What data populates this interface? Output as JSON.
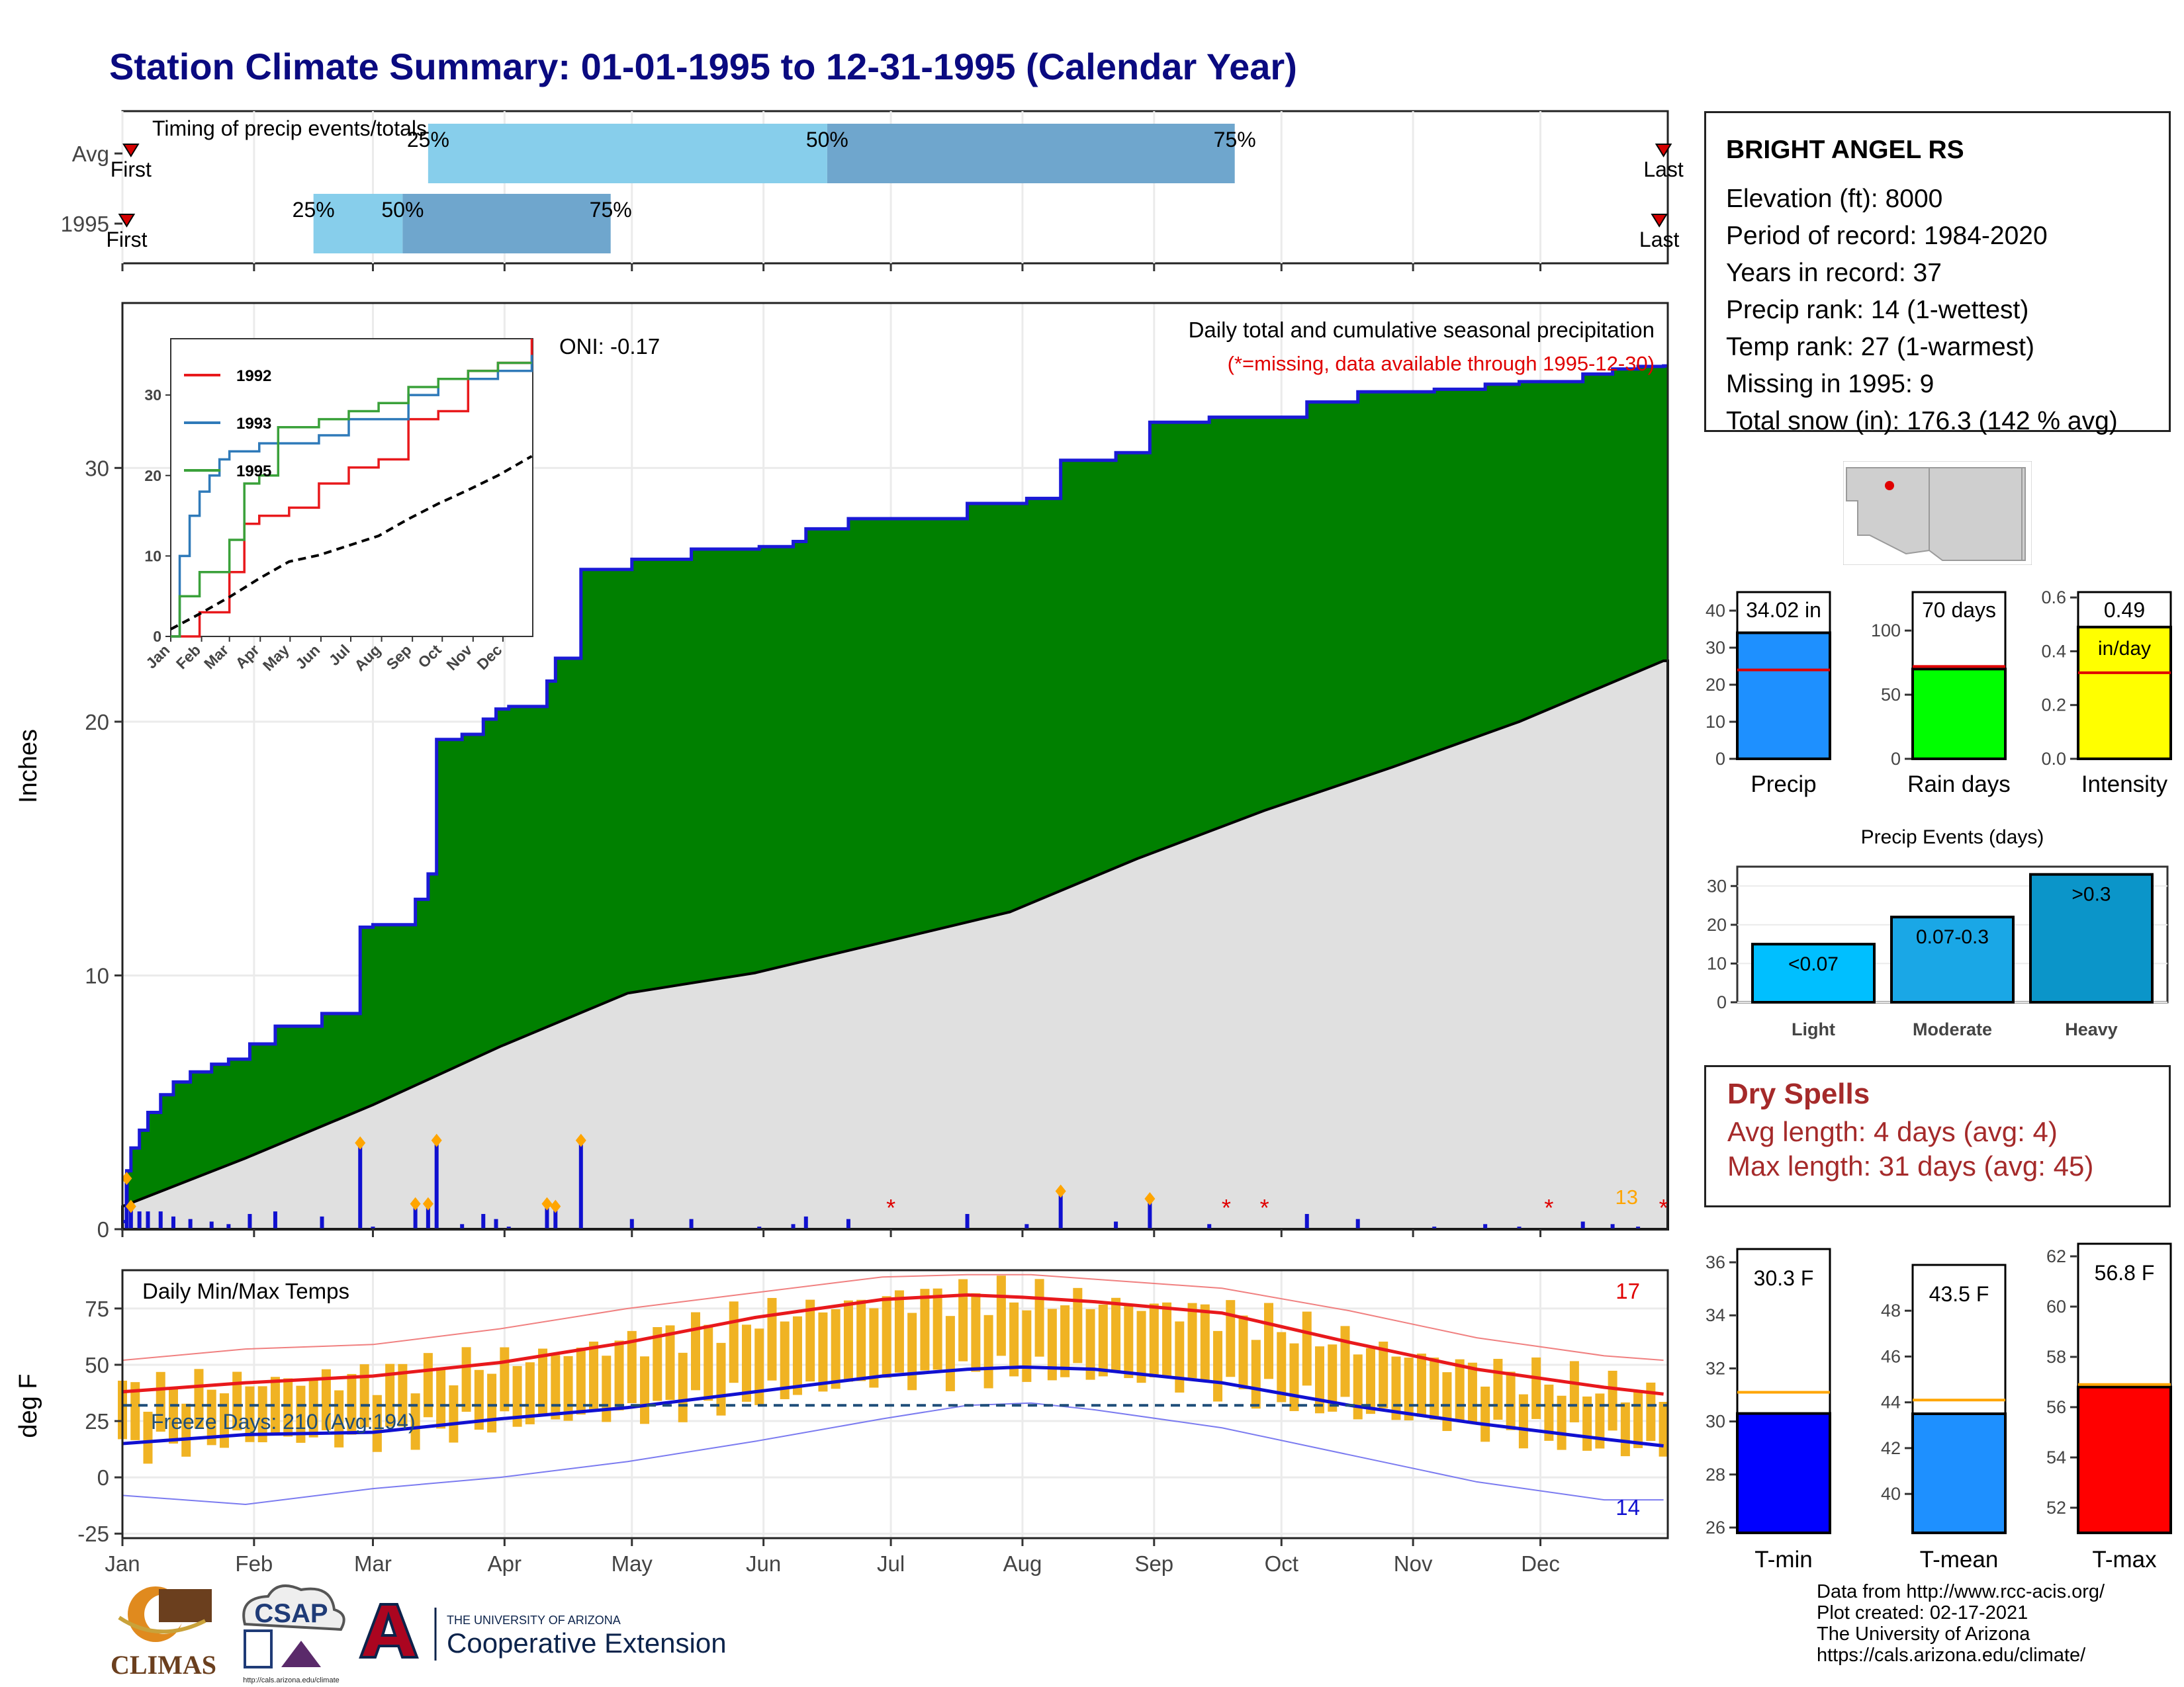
{
  "title": "Station Climate Summary: 01-01-1995 to 12-31-1995 (Calendar Year)",
  "months": [
    "Jan",
    "Feb",
    "Mar",
    "Apr",
    "May",
    "Jun",
    "Jul",
    "Aug",
    "Sep",
    "Oct",
    "Nov",
    "Dec"
  ],
  "timing": {
    "label": "Timing of precip events/totals",
    "rows": [
      "Avg",
      "1995"
    ],
    "first_label": "First",
    "last_label": "Last",
    "pct_labels": [
      "25%",
      "50%",
      "75%"
    ],
    "avg": {
      "first_doy": 3,
      "p25_doy": 73,
      "p50_doy": 167,
      "p75_doy": 263,
      "last_doy": 364
    },
    "y1995": {
      "first_doy": 2,
      "p25_doy": 46,
      "p50_doy": 67,
      "p75_doy": 116,
      "last_doy": 363
    }
  },
  "precip_panel": {
    "title": "Daily total and cumulative seasonal precipitation",
    "subtitle": "(*=missing, data available through 1995-12-30)",
    "oni": "ONI: -0.17",
    "ylabel": "Inches",
    "count_label": "13"
  },
  "inset": {
    "legend": [
      "1992",
      "1993",
      "1995"
    ],
    "colors": [
      "#e8191c",
      "#2f7ab9",
      "#3aa13a"
    ]
  },
  "temp_panel": {
    "title": "Daily Min/Max Temps",
    "ylabel": "deg F",
    "freeze_label": "Freeze Days: 210 (Avg:194)",
    "count_hot": "17",
    "count_cold": "14"
  },
  "station": {
    "name": "BRIGHT ANGEL RS",
    "lines": [
      "Elevation (ft): 8000",
      "Period of record: 1984-2020",
      "Years in record: 37",
      "Precip rank: 14 (1-wettest)",
      "Temp rank: 27 (1-warmest)",
      "Missing in 1995: 9",
      "Total snow (in): 176.3 (142 % avg)"
    ]
  },
  "dry_spells": {
    "title": "Dry Spells",
    "avg_line": "Avg length: 4 days (avg: 4)",
    "max_line": "Max length: 31 days (avg: 45)"
  },
  "precip_events_title": "Precip Events (days)",
  "footer": [
    "Data from http://www.rcc-acis.org/",
    "Plot created: 02-17-2021",
    "The University of Arizona",
    "https://cals.arizona.edu/climate/"
  ],
  "logos": {
    "climas": "CLIMAS",
    "csap": "CSAP",
    "csap_url": "http://cals.arizona.edu/climate",
    "ua_letter": "A",
    "ua_small": "THE UNIVERSITY OF ARIZONA",
    "ua_big": "Cooperative Extension"
  },
  "colors": {
    "cumulative_fill": "#008000",
    "cumulative_line": "#1a1ad6",
    "avg_fill": "#e0e0e0",
    "timing_light": "#87ceeb",
    "timing_dark": "#6fa6cd",
    "temp_bar": "#f0b323",
    "tmax_line": "#e8191c",
    "tmin_line": "#1010d0"
  },
  "chart_data": [
    {
      "type": "area",
      "name": "cumulative precipitation",
      "x_units": "day of year",
      "y_units": "inches",
      "ylim": [
        0,
        36.5
      ],
      "yticks": [
        0,
        10,
        20,
        30
      ],
      "series": [
        {
          "name": "1995 cumulative",
          "x": [
            1,
            2,
            3,
            5,
            7,
            10,
            13,
            17,
            22,
            26,
            31,
            37,
            42,
            46,
            48,
            57,
            60,
            66,
            70,
            73,
            75,
            81,
            86,
            89,
            92,
            100,
            101,
            103,
            109,
            121,
            135,
            151,
            159,
            162,
            172,
            200,
            214,
            222,
            235,
            243,
            257,
            280,
            292,
            310,
            322,
            330,
            345,
            352,
            358,
            364
          ],
          "y": [
            0.3,
            2.3,
            3.2,
            3.9,
            4.6,
            5.3,
            5.8,
            6.2,
            6.5,
            6.7,
            7.3,
            8.0,
            8.0,
            8.0,
            8.5,
            11.9,
            12.0,
            12.0,
            13.0,
            14.0,
            19.3,
            19.5,
            20.1,
            20.5,
            20.6,
            20.6,
            21.6,
            22.5,
            26.0,
            26.4,
            26.8,
            26.9,
            27.1,
            27.6,
            28.0,
            28.6,
            28.8,
            30.3,
            30.6,
            31.8,
            32.0,
            32.6,
            33.0,
            33.1,
            33.3,
            33.4,
            33.7,
            33.9,
            34.0,
            34.02
          ]
        },
        {
          "name": "Avg cumulative",
          "x": [
            1,
            30,
            60,
            90,
            120,
            150,
            180,
            210,
            240,
            270,
            300,
            330,
            364
          ],
          "y": [
            0.9,
            2.8,
            4.9,
            7.2,
            9.3,
            10.1,
            11.3,
            12.5,
            14.6,
            16.5,
            18.2,
            20.0,
            22.4
          ]
        }
      ]
    },
    {
      "type": "line",
      "name": "inset cumulative comparison",
      "xticks": [
        "Jan",
        "Feb",
        "Mar",
        "Apr",
        "May",
        "Jun",
        "Jul",
        "Aug",
        "Sep",
        "Oct",
        "Nov",
        "Dec"
      ],
      "yticks": [
        0,
        10,
        20,
        30
      ],
      "ylim": [
        0,
        37
      ],
      "series": [
        {
          "name": "1992",
          "x": [
            1,
            30,
            45,
            60,
            75,
            90,
            120,
            150,
            180,
            210,
            240,
            270,
            300,
            330,
            364
          ],
          "y": [
            0,
            3,
            3,
            8,
            14,
            15,
            16,
            19,
            21,
            22,
            27,
            28,
            33,
            34,
            37
          ]
        },
        {
          "name": "1993",
          "x": [
            1,
            10,
            20,
            30,
            40,
            50,
            60,
            90,
            120,
            150,
            180,
            210,
            240,
            270,
            300,
            330,
            364
          ],
          "y": [
            0,
            10,
            15,
            18,
            20,
            22,
            23,
            24,
            24,
            25,
            27,
            27,
            30,
            32,
            32,
            33,
            35
          ]
        },
        {
          "name": "1995",
          "x": [
            1,
            10,
            30,
            45,
            60,
            75,
            90,
            109,
            150,
            180,
            210,
            240,
            270,
            300,
            330,
            364
          ],
          "y": [
            0,
            5,
            8,
            8,
            12,
            19,
            20,
            26,
            27,
            28,
            29,
            31,
            32,
            33,
            34,
            34
          ]
        },
        {
          "name": "avg",
          "x": [
            1,
            30,
            60,
            90,
            120,
            150,
            180,
            210,
            240,
            270,
            300,
            330,
            364
          ],
          "y": [
            0.9,
            2.8,
            4.9,
            7.2,
            9.3,
            10.1,
            11.3,
            12.5,
            14.6,
            16.5,
            18.2,
            20.0,
            22.4
          ]
        }
      ]
    },
    {
      "type": "line",
      "name": "daily temperatures",
      "x_units": "day of year",
      "y_units": "deg F",
      "ylim": [
        -27,
        92
      ],
      "yticks": [
        -25,
        0,
        25,
        50,
        75
      ],
      "freeze_line": 32,
      "series": [
        {
          "name": "avg max",
          "x": [
            1,
            30,
            60,
            90,
            120,
            150,
            180,
            200,
            213,
            230,
            260,
            290,
            320,
            350,
            364
          ],
          "y": [
            38,
            42,
            45,
            51,
            60,
            71,
            79,
            81,
            80,
            78,
            73,
            60,
            48,
            40,
            37
          ]
        },
        {
          "name": "avg min",
          "x": [
            1,
            30,
            60,
            90,
            120,
            150,
            180,
            200,
            213,
            230,
            260,
            290,
            320,
            350,
            364
          ],
          "y": [
            15,
            19,
            20,
            26,
            31,
            38,
            45,
            48,
            49,
            48,
            42,
            32,
            24,
            17,
            14
          ]
        },
        {
          "name": "record max",
          "x": [
            1,
            30,
            60,
            90,
            120,
            150,
            180,
            200,
            215,
            230,
            260,
            290,
            320,
            350,
            364
          ],
          "y": [
            52,
            57,
            59,
            66,
            75,
            82,
            89,
            90,
            90,
            88,
            84,
            74,
            62,
            54,
            52
          ]
        },
        {
          "name": "record min",
          "x": [
            1,
            30,
            60,
            90,
            120,
            150,
            180,
            200,
            215,
            230,
            260,
            290,
            320,
            350,
            364
          ],
          "y": [
            -8,
            -12,
            -5,
            0,
            7,
            16,
            26,
            32,
            33,
            30,
            22,
            10,
            -2,
            -10,
            -10
          ]
        }
      ]
    },
    {
      "type": "bar",
      "name": "precip summary",
      "categories": [
        "Precip",
        "Rain days",
        "Intensity"
      ],
      "values": [
        34.02,
        70,
        0.49
      ],
      "labels": [
        "34.02 in",
        "70 days",
        "0.49"
      ],
      "unit_label": "in/day",
      "averages": [
        24,
        72,
        0.32
      ],
      "ylims": [
        [
          0,
          45
        ],
        [
          0,
          130
        ],
        [
          0,
          0.62
        ]
      ],
      "yticks": [
        [
          0,
          10,
          20,
          30,
          40
        ],
        [
          0,
          50,
          100
        ],
        [
          0.0,
          0.2,
          0.4,
          0.6
        ]
      ],
      "colors": [
        "#1e90ff",
        "#00ff00",
        "#ffff00"
      ]
    },
    {
      "type": "bar",
      "name": "Precip Events (days)",
      "categories": [
        "Light",
        "Moderate",
        "Heavy"
      ],
      "values": [
        15,
        22,
        33
      ],
      "labels": [
        "<0.07",
        "0.07-0.3",
        ">0.3"
      ],
      "ylim": [
        0,
        35
      ],
      "yticks": [
        0,
        10,
        20,
        30
      ],
      "colors": [
        "#00bfff",
        "#1aa7e6",
        "#0b95c9"
      ]
    },
    {
      "type": "bar",
      "name": "temperature summary",
      "categories": [
        "T-min",
        "T-mean",
        "T-max"
      ],
      "values": [
        30.3,
        43.5,
        56.8
      ],
      "labels": [
        "30.3 F",
        "43.5 F",
        "56.8 F"
      ],
      "averages": [
        31.1,
        44.1,
        56.9
      ],
      "ylims": [
        [
          25.8,
          36.5
        ],
        [
          38.3,
          50.0
        ],
        [
          51.0,
          62.5
        ]
      ],
      "yticks": [
        [
          26,
          28,
          30,
          32,
          34,
          36
        ],
        [
          40,
          42,
          44,
          46,
          48
        ],
        [
          52,
          54,
          56,
          58,
          60,
          62
        ]
      ],
      "colors": [
        "#0000ff",
        "#1e90ff",
        "#ff0000"
      ]
    }
  ]
}
